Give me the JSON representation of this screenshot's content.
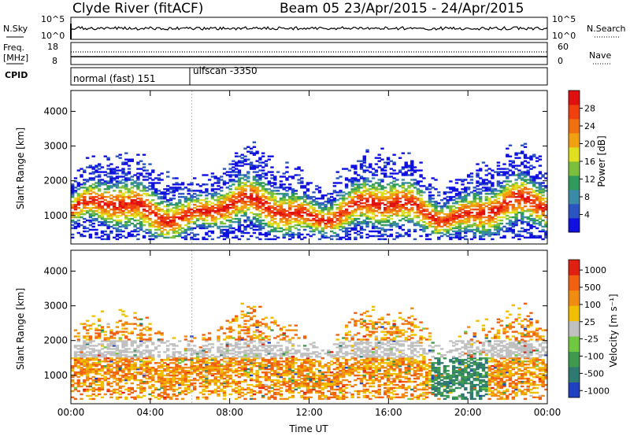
{
  "header": {
    "station": "Clyde River (fitACF)",
    "beam": "Beam 05",
    "date_range": "23/Apr/2015 - 24/Apr/2015"
  },
  "top_panels": {
    "nsky_label": "N.Sky",
    "nsky_ticks": [
      "10^5",
      "10^0"
    ],
    "nsearch_label": "N.Search",
    "nsearch_ticks": [
      "10^5",
      "10^0"
    ],
    "freq_label_1": "Freq.",
    "freq_label_2": "[MHz]",
    "freq_ticks": [
      "18",
      "8"
    ],
    "nave_label": "Nave",
    "nave_ticks": [
      "60",
      "0"
    ],
    "cpid_label": "CPID",
    "cpid_segments": [
      {
        "name": "normal (fast) 151",
        "start_hour": 0
      },
      {
        "name": "ulfscan -3350",
        "start_hour": 6.1
      }
    ]
  },
  "chart_data": [
    {
      "type": "heatmap",
      "name": "power",
      "ylabel": "Slant Range [km]",
      "xlim": [
        0,
        24
      ],
      "ylim": [
        180,
        4600
      ],
      "yticks": [
        "1000",
        "2000",
        "3000",
        "4000"
      ],
      "colorbar": {
        "label": "Power [dB]",
        "ticks": [
          "4",
          "8",
          "12",
          "16",
          "20",
          "24",
          "28"
        ],
        "colors": [
          "#1010e0",
          "#2a54c0",
          "#3b8aa8",
          "#2f9a5a",
          "#7cbf3c",
          "#e0e020",
          "#f0a010",
          "#f07010",
          "#f04010",
          "#e01010"
        ]
      }
    },
    {
      "type": "heatmap",
      "name": "velocity",
      "ylabel": "Slant Range [km]",
      "xlabel": "Time UT",
      "xlim": [
        0,
        24
      ],
      "ylim": [
        180,
        4600
      ],
      "xticks": [
        "00:00",
        "04:00",
        "08:00",
        "12:00",
        "16:00",
        "20:00",
        "00:00"
      ],
      "yticks": [
        "1000",
        "2000",
        "3000",
        "4000"
      ],
      "colorbar": {
        "label": "Velocity [m s⁻¹]",
        "ticks": [
          "1000",
          "500",
          "100",
          "25",
          "-25",
          "-100",
          "-500",
          "-1000"
        ],
        "colors": [
          "#2040c0",
          "#2f7a70",
          "#3f9a50",
          "#70c840",
          "#c0c0c0",
          "#f0c000",
          "#f08c10",
          "#f06010",
          "#e02010"
        ]
      }
    }
  ]
}
